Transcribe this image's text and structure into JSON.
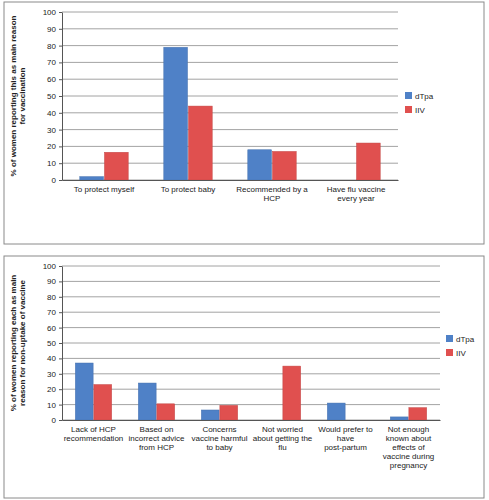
{
  "chart_data": [
    {
      "type": "bar",
      "y_label": "% of women reporting this as main reason for vaccination",
      "categories": [
        "To protect myself",
        "To protect baby",
        "Recommended by a HCP",
        "Have flu vaccine every year"
      ],
      "series": [
        {
          "name": "dTpa",
          "color": "#4f81c7",
          "values": [
            2,
            79,
            18,
            null
          ]
        },
        {
          "name": "IIV",
          "color": "#e0504f",
          "values": [
            16.5,
            44,
            17,
            22
          ]
        }
      ],
      "ylim": [
        0,
        100
      ],
      "yticks": [
        0,
        10,
        20,
        30,
        40,
        50,
        60,
        70,
        80,
        90,
        100
      ],
      "grid": true,
      "legend": "right"
    },
    {
      "type": "bar",
      "y_label": "% of women reporting each as main reason for non-uptake of vaccine",
      "categories": [
        "Lack of HCP recommendation",
        "Based on incorrect advice from HCP",
        "Concerns vaccine harmful to baby",
        "Not worried about getting the flu",
        "Would prefer to have post-partum",
        "Not enough known about effects of vaccine during pregnancy"
      ],
      "series": [
        {
          "name": "dTpa",
          "color": "#4f81c7",
          "values": [
            37,
            24,
            6.5,
            null,
            11,
            2
          ]
        },
        {
          "name": "IIV",
          "color": "#e0504f",
          "values": [
            23,
            10.5,
            9.5,
            35,
            null,
            8
          ]
        }
      ],
      "ylim": [
        0,
        100
      ],
      "yticks": [
        0,
        10,
        20,
        30,
        40,
        50,
        60,
        70,
        80,
        90,
        100
      ],
      "grid": true,
      "legend": "right"
    }
  ]
}
